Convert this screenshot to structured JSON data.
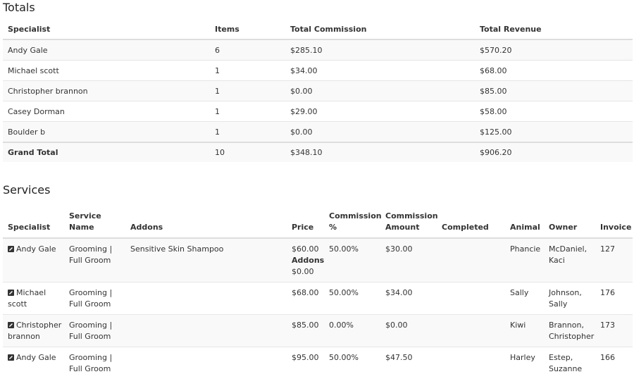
{
  "totals": {
    "heading": "Totals",
    "columns": [
      "Specialist",
      "Items",
      "Total Commission",
      "Total Revenue"
    ],
    "rows": [
      {
        "specialist": "Andy Gale",
        "items": "6",
        "commission": "$285.10",
        "revenue": "$570.20"
      },
      {
        "specialist": "Michael scott",
        "items": "1",
        "commission": "$34.00",
        "revenue": "$68.00"
      },
      {
        "specialist": "Christopher brannon",
        "items": "1",
        "commission": "$0.00",
        "revenue": "$85.00"
      },
      {
        "specialist": "Casey Dorman",
        "items": "1",
        "commission": "$29.00",
        "revenue": "$58.00"
      },
      {
        "specialist": "Boulder b",
        "items": "1",
        "commission": "$0.00",
        "revenue": "$125.00"
      }
    ],
    "grand_total": {
      "label": "Grand Total",
      "items": "10",
      "commission": "$348.10",
      "revenue": "$906.20"
    }
  },
  "services": {
    "heading": "Services",
    "columns": {
      "specialist": "Specialist",
      "service_name": "Service Name",
      "addons": "Addons",
      "price": "Price",
      "commission_pct": "Commission %",
      "commission_amount": "Commission Amount",
      "completed": "Completed",
      "animal": "Animal",
      "owner": "Owner",
      "invoice": "Invoice"
    },
    "rows": [
      {
        "specialist": "Andy Gale",
        "service_name": "Grooming | Full Groom",
        "addons": "Sensitive Skin Shampoo",
        "price": "$60.00",
        "price_addons_label": "Addons",
        "price_addons_value": "$0.00",
        "commission_pct": "50.00%",
        "commission_amount": "$30.00",
        "completed": "",
        "animal": "Phancie",
        "owner": "McDaniel, Kaci",
        "invoice": "127"
      },
      {
        "specialist": "Michael scott",
        "service_name": "Grooming | Full Groom",
        "addons": "",
        "price": "$68.00",
        "commission_pct": "50.00%",
        "commission_amount": "$34.00",
        "completed": "",
        "animal": "Sally",
        "owner": "Johnson, Sally",
        "invoice": "176"
      },
      {
        "specialist": "Christopher brannon",
        "service_name": "Grooming | Full Groom",
        "addons": "",
        "price": "$85.00",
        "commission_pct": "0.00%",
        "commission_amount": "$0.00",
        "completed": "",
        "animal": "Kiwi",
        "owner": "Brannon, Christopher",
        "invoice": "173"
      },
      {
        "specialist": "Andy Gale",
        "service_name": "Grooming | Full Groom",
        "addons": "",
        "price": "$95.00",
        "commission_pct": "50.00%",
        "commission_amount": "$47.50",
        "completed": "",
        "animal": "Harley",
        "owner": "Estep, Suzanne",
        "invoice": "166"
      }
    ]
  },
  "icons": {
    "edit": "edit-icon"
  },
  "colors": {
    "text": "#333333",
    "stripe": "#f9f9f9",
    "border": "#dddddd"
  }
}
